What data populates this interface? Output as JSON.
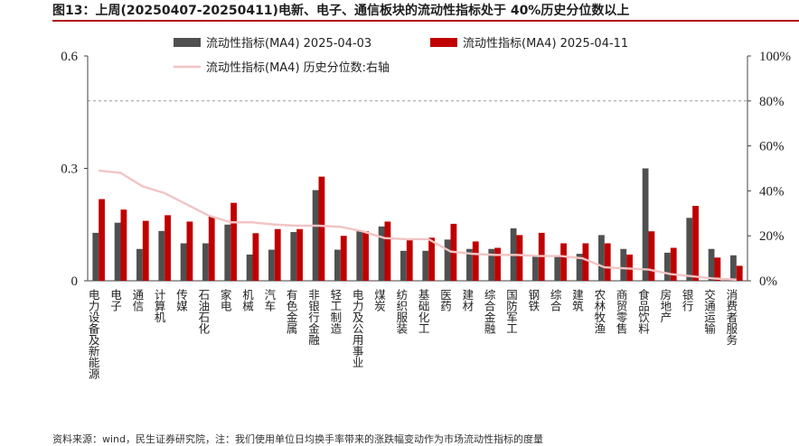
{
  "title": "图13：上周(20250407-20250411)电新、电子、通信板块的流动性指标处于 40%历史分位数以上",
  "source": "资料来源：wind，民生证券研究院，注：我们使用单位日均换手率带来的涨跌幅变动作为市场流动性指标的度量",
  "chart_data": {
    "type": "bar",
    "categories": [
      "电力设备及新能源",
      "电子",
      "通信",
      "计算机",
      "传媒",
      "石油石化",
      "家电",
      "机械",
      "汽车",
      "有色金属",
      "非银行金融",
      "轻工制造",
      "电力及公用事业",
      "煤炭",
      "纺织服装",
      "基础化工",
      "医药",
      "建材",
      "综合金融",
      "国防军工",
      "钢铁",
      "综合",
      "建筑",
      "农林牧渔",
      "商贸零售",
      "食品饮料",
      "房地产",
      "银行",
      "交通运输",
      "消费者服务"
    ],
    "series": [
      {
        "name": "流动性指标(MA4) 2025-04-03",
        "type": "bar",
        "axis": "left",
        "color": "#505050",
        "values": [
          0.128,
          0.155,
          0.085,
          0.133,
          0.1,
          0.1,
          0.15,
          0.07,
          0.083,
          0.13,
          0.242,
          0.083,
          0.135,
          0.145,
          0.08,
          0.08,
          0.11,
          0.085,
          0.085,
          0.14,
          0.065,
          0.065,
          0.072,
          0.122,
          0.085,
          0.3,
          0.075,
          0.168,
          0.085,
          0.068
        ]
      },
      {
        "name": "流动性指标(MA4) 2025-04-11",
        "type": "bar",
        "axis": "left",
        "color": "#c00000",
        "values": [
          0.218,
          0.19,
          0.16,
          0.175,
          0.158,
          0.172,
          0.208,
          0.127,
          0.138,
          0.138,
          0.278,
          0.12,
          0.132,
          0.158,
          0.108,
          0.115,
          0.152,
          0.105,
          0.088,
          0.122,
          0.128,
          0.1,
          0.1,
          0.1,
          0.07,
          0.132,
          0.088,
          0.2,
          0.062,
          0.04
        ]
      },
      {
        "name": "流动性指标(MA4) 历史分位数:右轴",
        "type": "line",
        "axis": "right",
        "color": "#f2c4c4",
        "values": [
          49,
          48,
          42,
          39,
          34,
          29,
          26,
          26,
          25,
          24.5,
          24.5,
          24,
          22,
          19,
          18.5,
          18.5,
          13,
          12,
          11.5,
          11.5,
          11,
          11,
          10,
          6,
          5.5,
          5,
          3,
          2,
          1,
          0.5
        ]
      }
    ],
    "left_axis": {
      "ylim": [
        0,
        0.6
      ],
      "ticks": [
        0,
        0.3,
        0.6
      ],
      "tick_labels": [
        "0",
        "0.3",
        "0.6"
      ]
    },
    "right_axis": {
      "ylim": [
        0,
        100
      ],
      "ticks": [
        0,
        20,
        40,
        60,
        80,
        100
      ],
      "tick_labels": [
        "0%",
        "20%",
        "40%",
        "60%",
        "80%",
        "100%"
      ]
    },
    "reference_line": {
      "axis": "right",
      "value": 80,
      "style": "dashed",
      "color": "#999999"
    },
    "legend_position": "top",
    "grid": false
  }
}
